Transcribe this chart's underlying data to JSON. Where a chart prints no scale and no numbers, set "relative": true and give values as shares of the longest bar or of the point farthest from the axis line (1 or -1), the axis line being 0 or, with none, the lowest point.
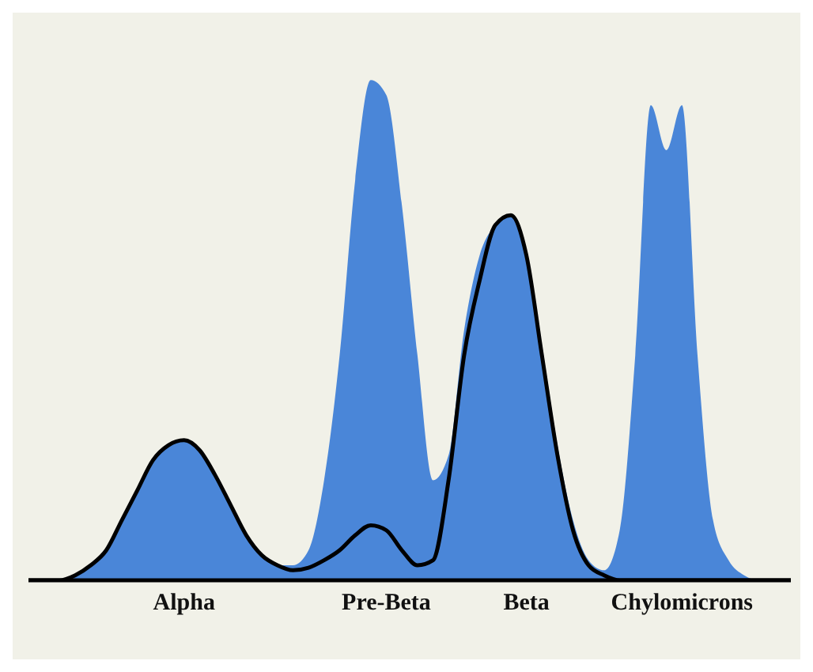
{
  "chart_data": {
    "type": "area",
    "relative": true,
    "categories": [
      null,
      null,
      null,
      null,
      null,
      null,
      null,
      null,
      null,
      null,
      "Alpha",
      null,
      null,
      null,
      null,
      null,
      null,
      null,
      null,
      null,
      null,
      null,
      null,
      "Pre-Beta",
      null,
      null,
      null,
      null,
      null,
      null,
      null,
      null,
      "Beta",
      null,
      null,
      null,
      null,
      null,
      null,
      null,
      null,
      null,
      "Chylomicrons",
      null,
      null,
      null,
      null,
      null,
      null,
      null
    ],
    "series": [
      {
        "color": "#4a86d8",
        "values": [
          0,
          0,
          0,
          0.01,
          0.03,
          0.06,
          0.12,
          0.18,
          0.24,
          0.27,
          0.28,
          0.26,
          0.21,
          0.15,
          0.09,
          0.05,
          0.03,
          0.03,
          0.06,
          0.2,
          0.45,
          0.8,
          1,
          0.97,
          0.75,
          0.45,
          0.2,
          0.25,
          0.5,
          0.65,
          0.71,
          0.73,
          0.66,
          0.47,
          0.27,
          0.12,
          0.04,
          0.02,
          0.1,
          0.45,
          0.95,
          0.86,
          0.95,
          0.45,
          0.12,
          0.04,
          0.01,
          0,
          0,
          0
        ]
      },
      {
        "type": "line",
        "color": "#000000",
        "values": [
          0,
          0,
          0,
          0.01,
          0.03,
          0.06,
          0.12,
          0.18,
          0.24,
          0.27,
          0.28,
          0.26,
          0.21,
          0.15,
          0.09,
          0.05,
          0.03,
          0.02,
          0.025,
          0.04,
          0.06,
          0.09,
          0.11,
          0.1,
          0.06,
          0.03,
          0.04,
          0.2,
          0.45,
          0.6,
          0.71,
          0.73,
          0.65,
          0.45,
          0.25,
          0.1,
          0.03,
          0.01,
          0,
          0,
          0,
          0,
          0,
          0,
          0,
          0,
          0,
          0,
          0,
          0
        ]
      }
    ],
    "grid": false,
    "legend": false,
    "marker": "none",
    "line_style": "solid"
  }
}
